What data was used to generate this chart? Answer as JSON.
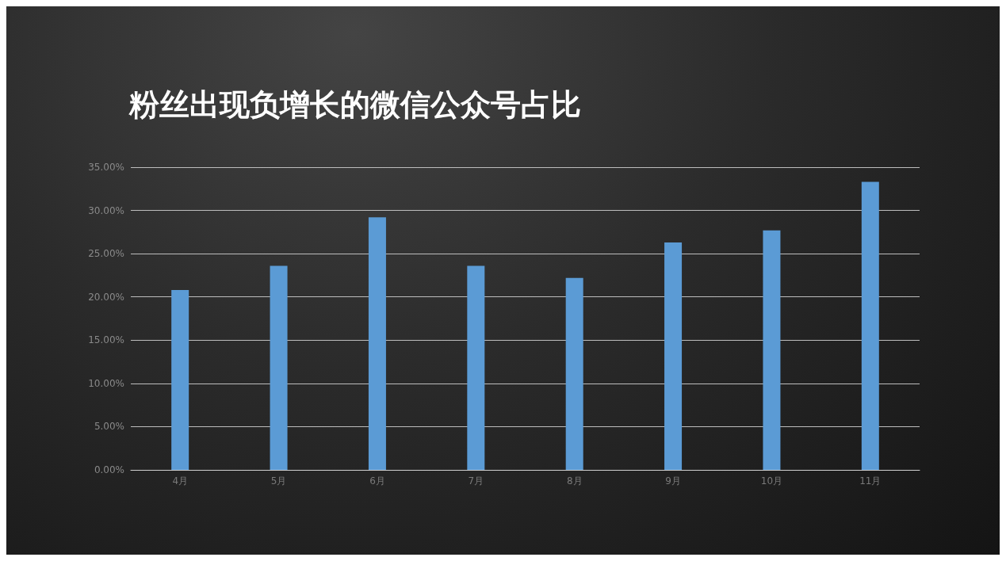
{
  "chart_data": {
    "type": "bar",
    "title": "粉丝出现负增长的微信公众号占比",
    "categories": [
      "4月",
      "5月",
      "6月",
      "7月",
      "8月",
      "9月",
      "10月",
      "11月"
    ],
    "values": [
      20.8,
      23.6,
      29.2,
      23.6,
      22.2,
      26.3,
      27.7,
      33.3
    ],
    "color": "#5b9bd5",
    "ylim": [
      0,
      35
    ],
    "yticks": [
      {
        "value": 0,
        "label": "0.00%"
      },
      {
        "value": 5,
        "label": "5.00%"
      },
      {
        "value": 10,
        "label": "10.00%"
      },
      {
        "value": 15,
        "label": "15.00%"
      },
      {
        "value": 20,
        "label": "20.00%"
      },
      {
        "value": 25,
        "label": "25.00%"
      },
      {
        "value": 30,
        "label": "30.00%"
      },
      {
        "value": 35,
        "label": "35.00%"
      }
    ],
    "grid": "y"
  }
}
